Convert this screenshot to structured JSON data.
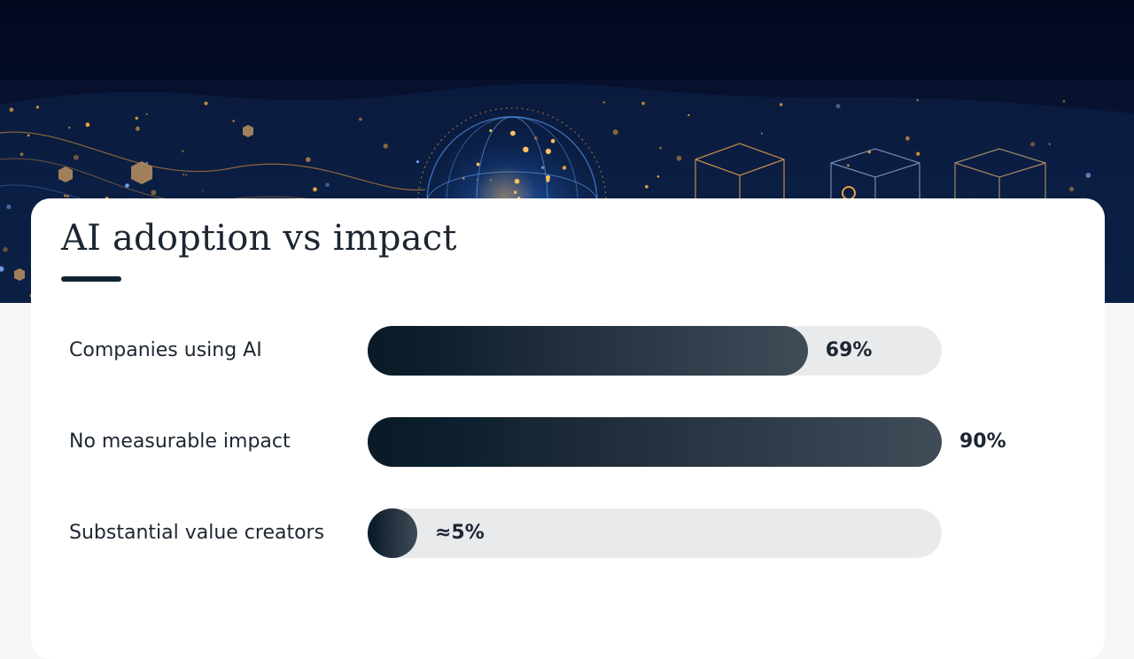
{
  "chart_data": {
    "type": "bar",
    "orientation": "horizontal",
    "title": "AI adoption vs impact",
    "categories": [
      "Companies using AI",
      "No measurable impact",
      "Substantial value creators"
    ],
    "values": [
      69,
      90,
      5
    ],
    "value_labels": [
      "69%",
      "90%",
      "≈5%"
    ],
    "xlim": [
      0,
      90
    ],
    "grid": false,
    "legend": "none"
  },
  "colors": {
    "bar_fill_start": "#0a1a26",
    "bar_fill_end": "#3f4c58",
    "track": "#e9eaec",
    "card": "#ffffff",
    "hero_background": "#07112e",
    "accent_glow": "#f3a63c"
  }
}
